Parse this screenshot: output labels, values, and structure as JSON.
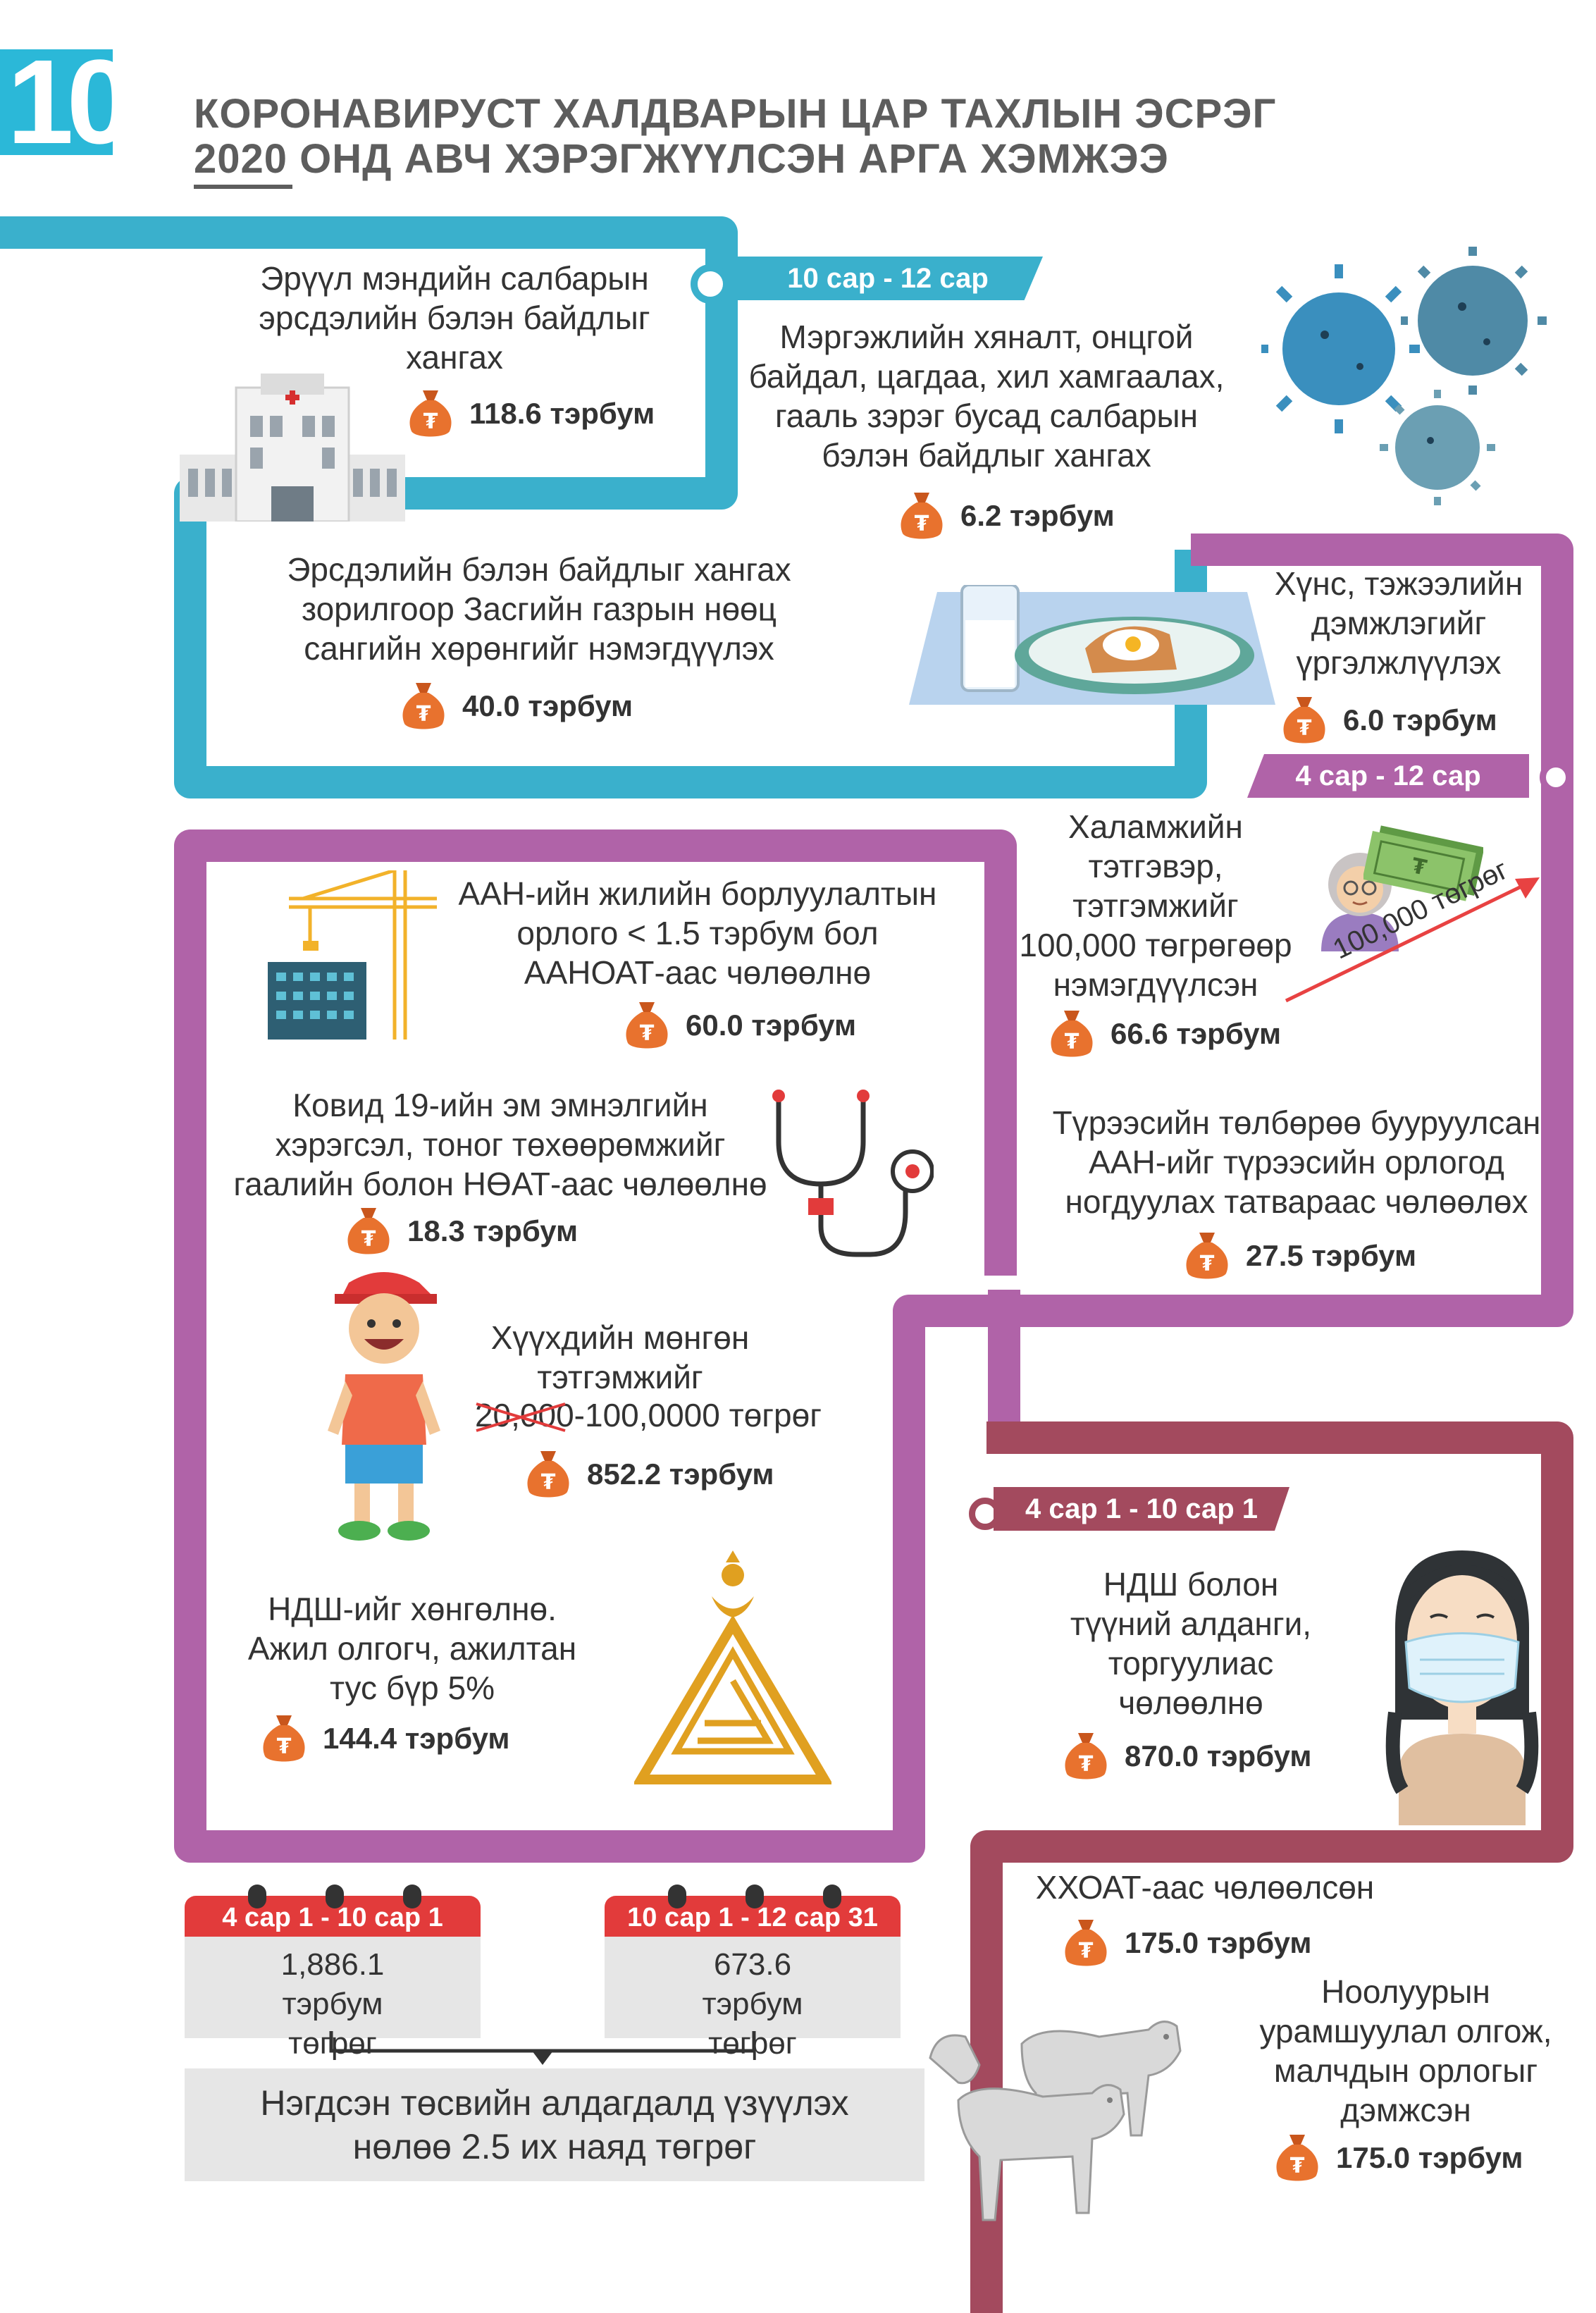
{
  "page": {
    "number": "10",
    "title_line1": "КОРОНАВИРУСТ ХАЛДВАРЫН ЦАР ТАХЛЫН ЭСРЭГ",
    "title_line2": "2020 ОНД АВЧ ХЭРЭГЖҮҮЛСЭН АРГА ХЭМЖЭЭ"
  },
  "colors": {
    "teal": "#3ab0cc",
    "purple": "#b063a8",
    "maroon": "#a34a5e",
    "orange": "#e8722e",
    "red": "#e23b3b",
    "gray": "#e6e6e6"
  },
  "section1": {
    "period": "10 сар - 12 сар",
    "items": [
      {
        "text": "Эрүүл мэндийн салбарын эрсдэлийн бэлэн байдлыг хангах",
        "amount": "118.6 тэрбум"
      },
      {
        "text": "Мэргэжлийн хяналт, онцгой байдал, цагдаа, хил хамгаалах, гааль зэрэг бусад салбарын бэлэн байдлыг хангах",
        "amount": "6.2 тэрбум"
      },
      {
        "text": "Эрсдэлийн бэлэн байдлыг хангах зорилгоор Засгийн газрын нөөц сангийн хөрөнгийг нэмэгдүүлэх",
        "amount": "40.0 тэрбум"
      }
    ]
  },
  "section2": {
    "period": "4 сар - 12 сар",
    "items": [
      {
        "text": "Хүнс, тэжээлийн дэмжлэгийг үргэлжлүүлэх",
        "amount": "6.0 тэрбум"
      },
      {
        "text": "Халамжийн тэтгэвэр, тэтгэмжийг 100,000 төгрөгөөр нэмэгдүүлсэн",
        "amount": "66.6 тэрбум"
      },
      {
        "text": "Түрээсийн төлбөрөө бууруулсан ААН-ийг түрээсийн орлогод ногдуулах татвараас чөлөөлөх",
        "amount": "27.5 тэрбум"
      },
      {
        "text": "ААН-ийн жилийн борлуулалтын орлого < 1.5 тэрбум бол ААНОАТ-аас чөлөөлнө",
        "amount": "60.0 тэрбум"
      },
      {
        "text": "Ковид 19-ийн эм эмнэлгийн хэрэгсэл, тоног төхөөрөмжийг гаалийн болон НӨАТ-аас чөлөөлнө",
        "amount": "18.3 тэрбум"
      },
      {
        "text_a": "Хүүхдийн мөнгөн тэтгэмжийг",
        "text_old": "20,000",
        "text_b": "-100,0000 төгрөг",
        "amount": "852.2 тэрбум"
      },
      {
        "text": "НДШ-ийг хөнгөлнө. Ажил олгогч, ажилтан тус бүр 5%",
        "amount": "144.4 тэрбум"
      }
    ],
    "arrow_label": "100,000 төгрөг"
  },
  "section3": {
    "period": "4 сар 1 - 10 сар 1",
    "items": [
      {
        "text": "НДШ болон түүний алданги, торгуулиас чөлөөлнө",
        "amount": "870.0 тэрбум"
      },
      {
        "text": "ХХОАТ-аас чөлөөлсөн",
        "amount": "175.0 тэрбум"
      },
      {
        "text": "Ноолуурын урамшуулал олгож, малчдын орлогыг дэмжсэн",
        "amount": "175.0 тэрбум"
      }
    ]
  },
  "summary": {
    "cal1": {
      "period": "4 сар 1 - 10 сар 1",
      "value": "1,886.1 тэрбум төгрөг"
    },
    "cal2": {
      "period": "10 сар 1 - 12 сар 31",
      "value": "673.6 тэрбум төгрөг"
    },
    "total": "Нэгдсэн төсвийн алдагдалд үзүүлэх нөлөө 2.5 их наяд төгрөг"
  },
  "icons": [
    "money-bag-icon",
    "hospital-icon",
    "virus-icon",
    "food-tray-icon",
    "grandmother-icon",
    "money-notes-icon",
    "crane-building-icon",
    "stethoscope-icon",
    "boy-icon",
    "ndsh-logo-icon",
    "girl-mask-icon",
    "goats-icon"
  ]
}
